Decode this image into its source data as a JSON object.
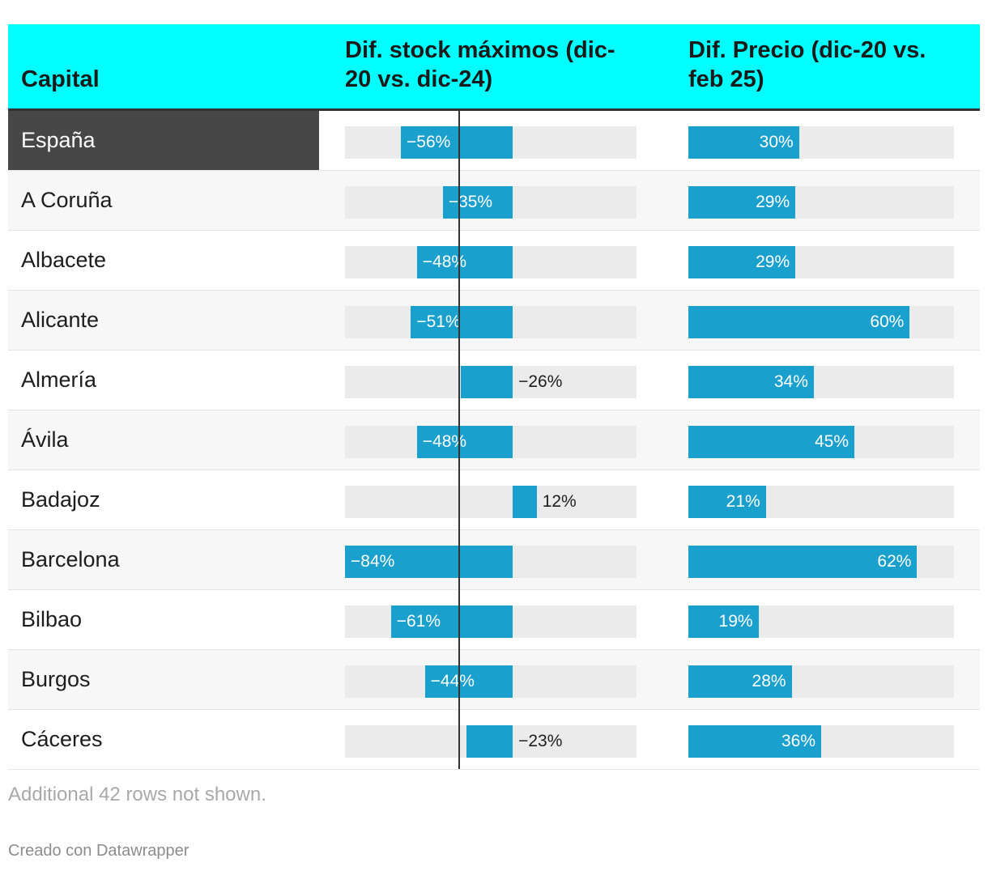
{
  "colors": {
    "header_bg": "#00ffff",
    "bar": "#1aa0cc",
    "track": "#ebebeb",
    "highlight_bg": "#474747"
  },
  "chart_data": {
    "type": "table",
    "columns": [
      "Capital",
      "Dif. stock máximos (dic-20 vs. dic-24)",
      "Dif. Precio (dic-20 vs. feb 25)"
    ],
    "stock_range": [
      -84,
      62
    ],
    "precio_range": [
      0,
      72
    ],
    "rows": [
      {
        "capital": "España",
        "stock": -56,
        "stock_label": "−56%",
        "precio": 30,
        "precio_label": "30%",
        "highlight": true
      },
      {
        "capital": "A Coruña",
        "stock": -35,
        "stock_label": "−35%",
        "precio": 29,
        "precio_label": "29%"
      },
      {
        "capital": "Albacete",
        "stock": -48,
        "stock_label": "−48%",
        "precio": 29,
        "precio_label": "29%"
      },
      {
        "capital": "Alicante",
        "stock": -51,
        "stock_label": "−51%",
        "precio": 60,
        "precio_label": "60%"
      },
      {
        "capital": "Almería",
        "stock": -26,
        "stock_label": "−26%",
        "precio": 34,
        "precio_label": "34%"
      },
      {
        "capital": "Ávila",
        "stock": -48,
        "stock_label": "−48%",
        "precio": 45,
        "precio_label": "45%"
      },
      {
        "capital": "Badajoz",
        "stock": 12,
        "stock_label": "12%",
        "precio": 21,
        "precio_label": "21%"
      },
      {
        "capital": "Barcelona",
        "stock": -84,
        "stock_label": "−84%",
        "precio": 62,
        "precio_label": "62%"
      },
      {
        "capital": "Bilbao",
        "stock": -61,
        "stock_label": "−61%",
        "precio": 19,
        "precio_label": "19%"
      },
      {
        "capital": "Burgos",
        "stock": -44,
        "stock_label": "−44%",
        "precio": 28,
        "precio_label": "28%"
      },
      {
        "capital": "Cáceres",
        "stock": -23,
        "stock_label": "−23%",
        "precio": 36,
        "precio_label": "36%"
      }
    ]
  },
  "header": {
    "capital": "Capital",
    "stock": "Dif. stock máximos (dic-20 vs. dic-24)",
    "precio": "Dif. Precio (dic-20 vs. feb 25)"
  },
  "footer": {
    "note": "Additional 42 rows not shown.",
    "credit": "Creado con Datawrapper"
  }
}
